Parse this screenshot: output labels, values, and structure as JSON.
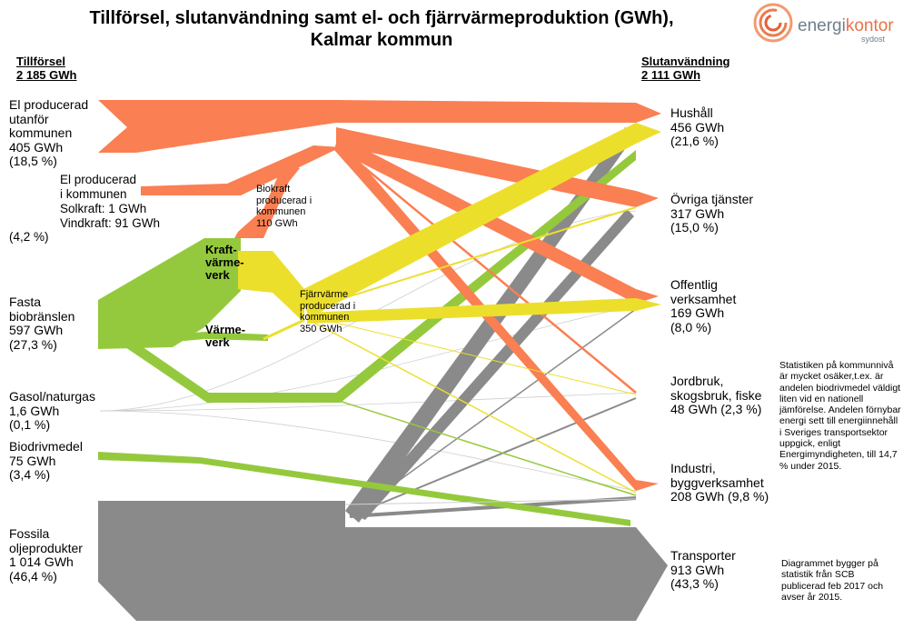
{
  "title": {
    "line1": "Tillförsel, slutanvändning samt el- och fjärrvärmeproduktion (GWh),",
    "line2": "Kalmar kommun"
  },
  "logo": {
    "part1": "energi",
    "part2": "kontor",
    "sub": "sydost"
  },
  "left_header": {
    "label": "Tillförsel",
    "total": "2 185 GWh"
  },
  "right_header": {
    "label": "Slutanvändning",
    "total": "2 111 GWh"
  },
  "sources": {
    "el_utanfor": [
      "El producerad",
      "utanför",
      "kommunen",
      "405 GWh",
      "(18,5 %)"
    ],
    "el_i_kommunen": [
      "El producerad",
      "i kommunen",
      "Solkraft: 1 GWh",
      "Vindkraft: 91 GWh",
      "(4,2 %)"
    ],
    "fasta": [
      "Fasta",
      "biobränslen",
      "597 GWh",
      "(27,3 %)"
    ],
    "gasol": [
      "Gasol/naturgas",
      "1,6 GWh",
      "(0,1 %)"
    ],
    "biodrivmedel": [
      "Biodrivmedel",
      "75 GWh",
      "(3,4 %)"
    ],
    "fossila": [
      "Fossila",
      "oljeprodukter",
      "1 014 GWh",
      "(46,4 %)"
    ]
  },
  "middle": {
    "biokraft": [
      "Biokraft",
      "producerad i",
      "kommunen",
      "110 GWh"
    ],
    "kraftvarmeverk": [
      "Kraft-",
      "värme-",
      "verk"
    ],
    "varmeverk": [
      "Värme-",
      "verk"
    ],
    "fjarrvarme": [
      "Fjärrvärme",
      "producerad i",
      "kommunen",
      "350 GWh"
    ]
  },
  "uses": {
    "hushall": [
      "Hushåll",
      "456 GWh",
      "(21,6 %)"
    ],
    "ovriga": [
      "Övriga tjänster",
      "317 GWh",
      "(15,0 %)"
    ],
    "offentlig": [
      "Offentlig",
      "verksamhet",
      "169 GWh",
      "(8,0 %)"
    ],
    "jordbruk": [
      "Jordbruk,",
      "skogsbruk, fiske",
      "48 GWh (2,3 %)"
    ],
    "industri": [
      "Industri,",
      "byggverksamhet",
      "208 GWh (9,8 %)"
    ],
    "transporter": [
      "Transporter",
      "913 GWh",
      "(43,3 %)"
    ]
  },
  "notes": {
    "statistik": [
      "Statistiken på kommunnivå",
      "är mycket osäker,t.ex. är",
      "andelen biodrivmedel väldigt",
      "liten vid en nationell",
      "jämförelse. Andelen förnybar",
      "energi sett till energiinnehåll",
      "i Sveriges transportsektor",
      "uppgick, enligt",
      "Energimyndigheten, till 14,7",
      "% under 2015."
    ],
    "diagram": [
      "Diagrammet bygger på",
      "statistik från SCB",
      "publicerad feb 2017 och",
      "avser år 2015."
    ]
  },
  "colors": {
    "el": "#fa7f52",
    "bio": "#95c93d",
    "heat": "#ecdf2c",
    "fossil": "#8a8a8a"
  }
}
